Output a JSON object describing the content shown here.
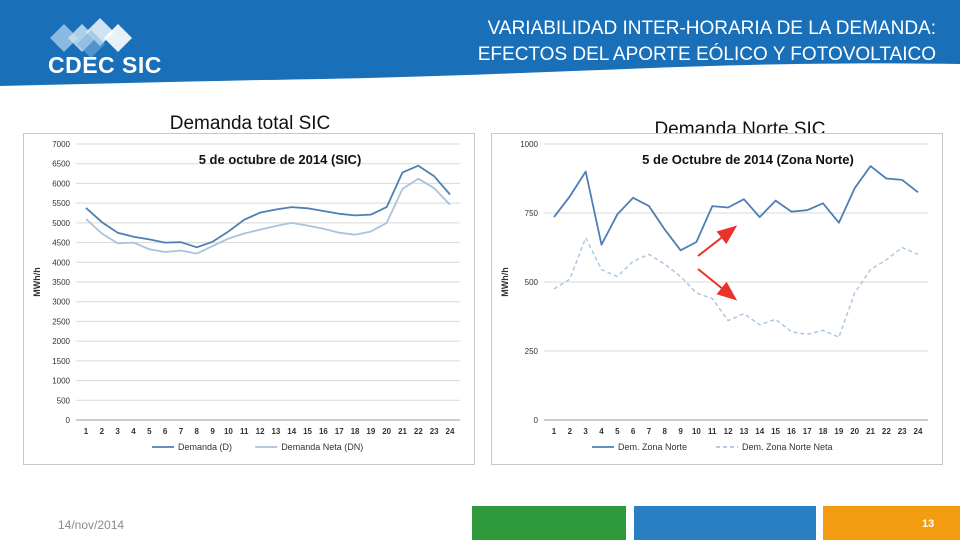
{
  "header": {
    "logo_text": "CDEC SIC",
    "title_line1": "VARIABILIDAD INTER-HORARIA DE LA DEMANDA:",
    "title_line2": "EFECTOS DEL APORTE EÓLICO Y FOTOVOLTAICO"
  },
  "colors": {
    "header_blue": "#1a70b8",
    "series_dark": "#4e7fb4",
    "series_light": "#a9c3de",
    "arrow": "#e8322a",
    "footer_green": "#2f9a3c",
    "footer_blue": "#2a7ec2",
    "footer_orange": "#f39c12"
  },
  "panels": {
    "left_title": "Demanda total SIC",
    "right_title": "Demanda Norte SIC"
  },
  "chart_data": [
    {
      "type": "line",
      "title": "5 de octubre de 2014 (SIC)",
      "ylabel": "MWh/h",
      "xlabel": "",
      "ylim": [
        0,
        7000
      ],
      "yticks": [
        0,
        500,
        1000,
        1500,
        2000,
        2500,
        3000,
        3500,
        4000,
        4500,
        5000,
        5500,
        6000,
        6500,
        7000
      ],
      "x": [
        1,
        2,
        3,
        4,
        5,
        6,
        7,
        8,
        9,
        10,
        11,
        12,
        13,
        14,
        15,
        16,
        17,
        18,
        19,
        20,
        21,
        22,
        23,
        24
      ],
      "grid": "horizontal",
      "legend_position": "bottom",
      "series": [
        {
          "name": "Demanda (D)",
          "style": "solid",
          "values": [
            5380,
            5020,
            4750,
            4650,
            4580,
            4500,
            4510,
            4380,
            4520,
            4780,
            5080,
            5260,
            5340,
            5400,
            5370,
            5300,
            5230,
            5190,
            5210,
            5400,
            6280,
            6450,
            6180,
            5720
          ]
        },
        {
          "name": "Demanda Neta (DN)",
          "style": "solid",
          "values": [
            5100,
            4730,
            4480,
            4500,
            4330,
            4260,
            4300,
            4220,
            4410,
            4600,
            4730,
            4830,
            4920,
            5000,
            4930,
            4850,
            4750,
            4700,
            4780,
            5000,
            5860,
            6120,
            5880,
            5460
          ]
        }
      ]
    },
    {
      "type": "line",
      "title": "5 de Octubre de 2014 (Zona Norte)",
      "ylabel": "MWh/h",
      "xlabel": "",
      "ylim": [
        0,
        1000
      ],
      "yticks": [
        0,
        250,
        500,
        750,
        1000
      ],
      "x": [
        1,
        2,
        3,
        4,
        5,
        6,
        7,
        8,
        9,
        10,
        11,
        12,
        13,
        14,
        15,
        16,
        17,
        18,
        19,
        20,
        21,
        22,
        23,
        24
      ],
      "grid": "horizontal",
      "legend_position": "bottom",
      "series": [
        {
          "name": "Dem. Zona Norte",
          "style": "solid",
          "values": [
            735,
            810,
            900,
            635,
            745,
            805,
            775,
            690,
            615,
            645,
            775,
            770,
            800,
            735,
            795,
            755,
            760,
            785,
            715,
            840,
            920,
            875,
            870,
            825
          ]
        },
        {
          "name": "Dem. Zona Norte Neta",
          "style": "dashed",
          "values": [
            475,
            510,
            660,
            545,
            520,
            575,
            600,
            565,
            520,
            460,
            440,
            360,
            385,
            345,
            365,
            320,
            310,
            325,
            300,
            460,
            545,
            580,
            625,
            600
          ]
        }
      ]
    }
  ],
  "footer": {
    "date": "14/nov/2014",
    "page": "13"
  }
}
